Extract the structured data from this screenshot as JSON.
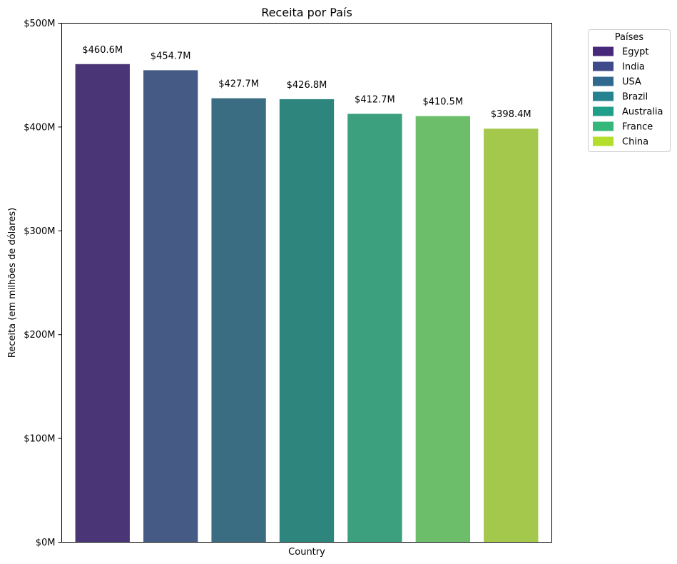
{
  "chart_data": {
    "type": "bar",
    "title": "Receita por País",
    "xlabel": "Country",
    "ylabel": "Receita (em milhões de dólares)",
    "categories": [
      "Egypt",
      "India",
      "USA",
      "Brazil",
      "Australia",
      "France",
      "China"
    ],
    "values": [
      460.6,
      454.7,
      427.7,
      426.8,
      412.7,
      410.5,
      398.4
    ],
    "value_labels": [
      "$460.6M",
      "$454.7M",
      "$427.7M",
      "$426.8M",
      "$412.7M",
      "$410.5M",
      "$398.4M"
    ],
    "ylim": [
      0,
      500
    ],
    "yticks": [
      0,
      100,
      200,
      300,
      400,
      500
    ],
    "ytick_labels": [
      "$0M",
      "$100M",
      "$200M",
      "$300M",
      "$400M",
      "$500M"
    ],
    "bar_colors": [
      "#4a3676",
      "#455a85",
      "#3a6d81",
      "#2e857e",
      "#3c9f7d",
      "#6cbe6b",
      "#a3c84b"
    ],
    "legend_colors": [
      "#482878",
      "#3e4a89",
      "#31688e",
      "#26828e",
      "#1f9e89",
      "#35b779",
      "#b4de2c"
    ],
    "legend": {
      "title": "Países",
      "entries": [
        "Egypt",
        "India",
        "USA",
        "Brazil",
        "Australia",
        "France",
        "China"
      ],
      "placement": "outside right, top"
    },
    "grid": false
  }
}
